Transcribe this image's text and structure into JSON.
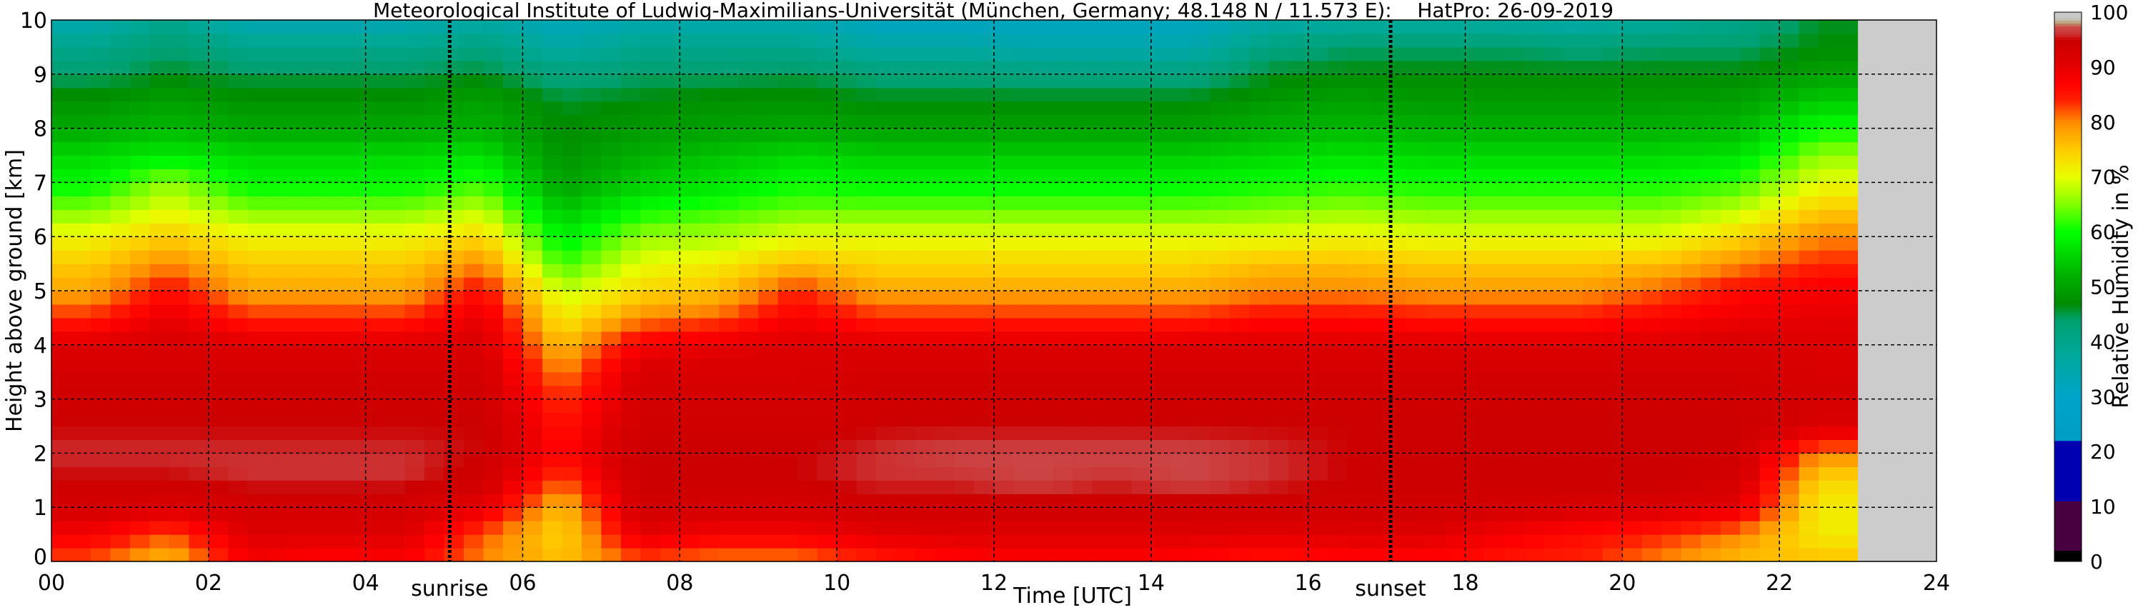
{
  "chart_data": {
    "type": "heatmap",
    "title": "Meteorological Institute of Ludwig-Maximilians-Universität (München, Germany; 48.148 N / 11.573 E):    HatPro: 26-09-2019",
    "xlabel": "Time [UTC]",
    "ylabel": "Height above ground [km]",
    "colorbar_label": "Relative Humidity in %",
    "xlim": [
      0,
      24
    ],
    "ylim": [
      0,
      10
    ],
    "clim": [
      0,
      100
    ],
    "grid": true,
    "x_ticks": [
      "00",
      "02",
      "04",
      "06",
      "08",
      "10",
      "12",
      "14",
      "16",
      "18",
      "20",
      "22",
      "24"
    ],
    "y_ticks": [
      "0",
      "1",
      "2",
      "3",
      "4",
      "5",
      "6",
      "7",
      "8",
      "9",
      "10"
    ],
    "colorbar_ticks": [
      "0",
      "10",
      "20",
      "30",
      "40",
      "50",
      "60",
      "70",
      "80",
      "90",
      "100"
    ],
    "annotations": [
      {
        "label": "sunrise",
        "time": 5.07
      },
      {
        "label": "sunset",
        "time": 17.05
      }
    ],
    "data_end_time": 23.0,
    "missing_color": "#cccccc",
    "heights_km": [
      0,
      0.5,
      1,
      1.5,
      2,
      2.5,
      3,
      3.5,
      4,
      4.5,
      5,
      5.5,
      6,
      6.5,
      7,
      7.5,
      8,
      8.5,
      9,
      9.5,
      10
    ],
    "times_utc": [
      0.5,
      1.5,
      2.5,
      3.5,
      4.5,
      5.5,
      6.5,
      7.5,
      8.5,
      9.5,
      10.5,
      11.5,
      12.5,
      13.5,
      14.5,
      15.5,
      16.5,
      17.5,
      18.5,
      19.5,
      20.5,
      21.5,
      22.5
    ],
    "relative_humidity": [
      [
        82,
        88,
        93,
        95,
        96,
        95,
        94,
        93,
        91,
        84,
        78,
        75,
        71,
        65,
        59,
        56,
        51,
        48,
        44,
        40,
        34
      ],
      [
        76,
        82,
        92,
        95,
        96,
        95,
        94,
        93,
        92,
        90,
        86,
        80,
        75,
        70,
        66,
        58,
        53,
        50,
        46,
        44,
        40
      ],
      [
        88,
        91,
        93,
        96,
        96,
        95,
        94,
        93,
        91,
        84,
        78,
        75,
        71,
        65,
        59,
        56,
        51,
        48,
        45,
        40,
        33
      ],
      [
        86,
        91,
        93,
        96,
        96,
        95,
        94,
        93,
        91,
        84,
        78,
        75,
        71,
        65,
        59,
        56,
        51,
        48,
        45,
        40,
        33
      ],
      [
        87,
        91,
        93,
        96,
        96,
        95,
        94,
        93,
        91,
        84,
        78,
        75,
        71,
        65,
        59,
        56,
        51,
        48,
        45,
        40,
        33
      ],
      [
        80,
        82,
        90,
        94,
        95,
        95,
        94,
        93,
        92,
        90,
        86,
        80,
        74,
        68,
        62,
        57,
        52,
        50,
        46,
        42,
        36
      ],
      [
        76,
        74,
        76,
        82,
        86,
        85,
        83,
        80,
        76,
        72,
        68,
        62,
        58,
        54,
        50,
        48,
        47,
        46,
        42,
        36,
        32
      ],
      [
        82,
        90,
        94,
        95,
        95,
        94,
        93,
        92,
        88,
        80,
        74,
        70,
        66,
        60,
        55,
        52,
        49,
        47,
        44,
        40,
        34
      ],
      [
        80,
        88,
        93,
        95,
        95,
        94,
        93,
        92,
        90,
        82,
        76,
        72,
        67,
        62,
        57,
        54,
        50,
        48,
        44,
        40,
        34
      ],
      [
        80,
        88,
        93,
        95,
        95,
        94,
        93,
        92,
        91,
        88,
        84,
        76,
        70,
        64,
        60,
        56,
        51,
        48,
        45,
        40,
        34
      ],
      [
        84,
        90,
        94,
        96,
        96,
        95,
        94,
        93,
        91,
        84,
        78,
        74,
        70,
        64,
        59,
        55,
        50,
        47,
        43,
        36,
        31
      ],
      [
        86,
        91,
        94,
        96,
        97,
        95,
        94,
        93,
        91,
        84,
        78,
        74,
        70,
        64,
        59,
        55,
        50,
        47,
        43,
        36,
        31
      ],
      [
        87,
        91,
        94,
        97,
        97,
        95,
        94,
        93,
        91,
        84,
        78,
        74,
        70,
        64,
        59,
        55,
        50,
        47,
        42,
        35,
        31
      ],
      [
        87,
        91,
        94,
        96,
        97,
        95,
        94,
        93,
        91,
        84,
        78,
        74,
        70,
        64,
        59,
        55,
        50,
        47,
        42,
        35,
        31
      ],
      [
        86,
        91,
        94,
        97,
        97,
        95,
        94,
        93,
        91,
        84,
        78,
        74,
        70,
        64,
        59,
        55,
        50,
        47,
        42,
        35,
        31
      ],
      [
        85,
        90,
        94,
        96,
        96,
        95,
        94,
        93,
        91,
        86,
        80,
        76,
        70,
        65,
        60,
        56,
        52,
        49,
        46,
        42,
        35
      ],
      [
        86,
        91,
        94,
        95,
        95,
        95,
        94,
        93,
        91,
        86,
        80,
        76,
        71,
        66,
        61,
        57,
        53,
        50,
        47,
        44,
        36
      ],
      [
        86,
        91,
        94,
        95,
        95,
        95,
        94,
        93,
        91,
        85,
        79,
        75,
        70,
        65,
        60,
        56,
        52,
        49,
        47,
        44,
        36
      ],
      [
        85,
        88,
        93,
        95,
        95,
        95,
        94,
        93,
        91,
        85,
        79,
        75,
        70,
        65,
        60,
        56,
        52,
        49,
        47,
        44,
        36
      ],
      [
        84,
        86,
        92,
        95,
        95,
        95,
        94,
        93,
        91,
        85,
        79,
        75,
        70,
        65,
        60,
        56,
        52,
        49,
        47,
        43,
        35
      ],
      [
        80,
        84,
        92,
        95,
        95,
        95,
        94,
        93,
        91,
        87,
        82,
        76,
        70,
        65,
        60,
        56,
        52,
        49,
        47,
        44,
        38
      ],
      [
        76,
        80,
        90,
        93,
        94,
        95,
        94,
        93,
        92,
        89,
        86,
        80,
        74,
        68,
        62,
        57,
        53,
        50,
        47,
        44,
        40
      ],
      [
        76,
        72,
        72,
        74,
        80,
        92,
        93,
        92,
        91,
        90,
        88,
        84,
        80,
        75,
        70,
        66,
        60,
        55,
        50,
        47,
        46
      ]
    ]
  }
}
